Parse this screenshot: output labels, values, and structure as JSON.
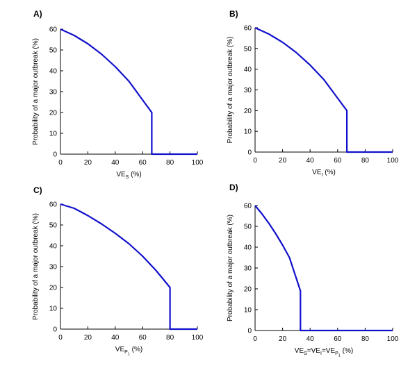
{
  "chart_data": [
    {
      "type": "line",
      "panel_label": "A)",
      "xlabel": {
        "main": "VE",
        "sub": "S",
        "sub2": "",
        "unit": " (%)"
      },
      "ylabel": "Probability of a major outbreak (%)",
      "xlim": [
        0,
        100
      ],
      "ylim": [
        0,
        60
      ],
      "xticks": [
        0,
        20,
        40,
        60,
        80,
        100
      ],
      "yticks": [
        0,
        10,
        20,
        30,
        40,
        50,
        60
      ],
      "grid": false,
      "series": [
        {
          "color": "#1010cc",
          "x": [
            0,
            10,
            20,
            30,
            40,
            50,
            60,
            66.7,
            66.7,
            100
          ],
          "y": [
            60,
            57,
            53,
            48,
            42,
            35,
            26,
            20,
            0,
            0
          ]
        }
      ]
    },
    {
      "type": "line",
      "panel_label": "B)",
      "xlabel": {
        "main": "VE",
        "sub": "I",
        "sub2": "",
        "unit": " (%)"
      },
      "ylabel": "Probability of a major outbreak (%)",
      "xlim": [
        0,
        100
      ],
      "ylim": [
        0,
        60
      ],
      "xticks": [
        0,
        20,
        40,
        60,
        80,
        100
      ],
      "yticks": [
        0,
        10,
        20,
        30,
        40,
        50,
        60
      ],
      "grid": false,
      "series": [
        {
          "color": "#1010cc",
          "x": [
            0,
            10,
            20,
            30,
            40,
            50,
            60,
            66.7,
            66.7,
            100
          ],
          "y": [
            60,
            57,
            53,
            48,
            42,
            35,
            26,
            20,
            0,
            0
          ]
        }
      ]
    },
    {
      "type": "line",
      "panel_label": "C)",
      "xlabel": {
        "main": "VE",
        "sub": "P",
        "sub2": "1",
        "unit": " (%)"
      },
      "ylabel": "Probability of a major outbreak (%)",
      "xlim": [
        0,
        100
      ],
      "ylim": [
        0,
        60
      ],
      "xticks": [
        0,
        20,
        40,
        60,
        80,
        100
      ],
      "yticks": [
        0,
        10,
        20,
        30,
        40,
        50,
        60
      ],
      "grid": false,
      "series": [
        {
          "color": "#1010cc",
          "x": [
            0,
            10,
            20,
            30,
            40,
            50,
            60,
            70,
            80,
            80,
            100
          ],
          "y": [
            60,
            58,
            54.5,
            50.5,
            46,
            41,
            35,
            28,
            20,
            0,
            0
          ]
        }
      ]
    },
    {
      "type": "line",
      "panel_label": "D)",
      "xlabel": {
        "main": "",
        "sub": "",
        "sub2": "",
        "unit": "",
        "combined": true,
        "parts": [
          "VE",
          "S",
          "=VE",
          "I",
          "=VE",
          "P",
          "1",
          " (%)"
        ]
      },
      "ylabel": "Probability of a major outbreak (%)",
      "xlim": [
        0,
        100
      ],
      "ylim": [
        0,
        60
      ],
      "xticks": [
        0,
        20,
        40,
        60,
        80,
        100
      ],
      "yticks": [
        0,
        10,
        20,
        30,
        40,
        50,
        60
      ],
      "grid": false,
      "series": [
        {
          "color": "#1010cc",
          "x": [
            0,
            5,
            10,
            15,
            20,
            25,
            33,
            33,
            100
          ],
          "y": [
            60,
            56,
            51.5,
            46.5,
            41,
            35,
            19,
            0,
            0
          ]
        }
      ]
    }
  ]
}
